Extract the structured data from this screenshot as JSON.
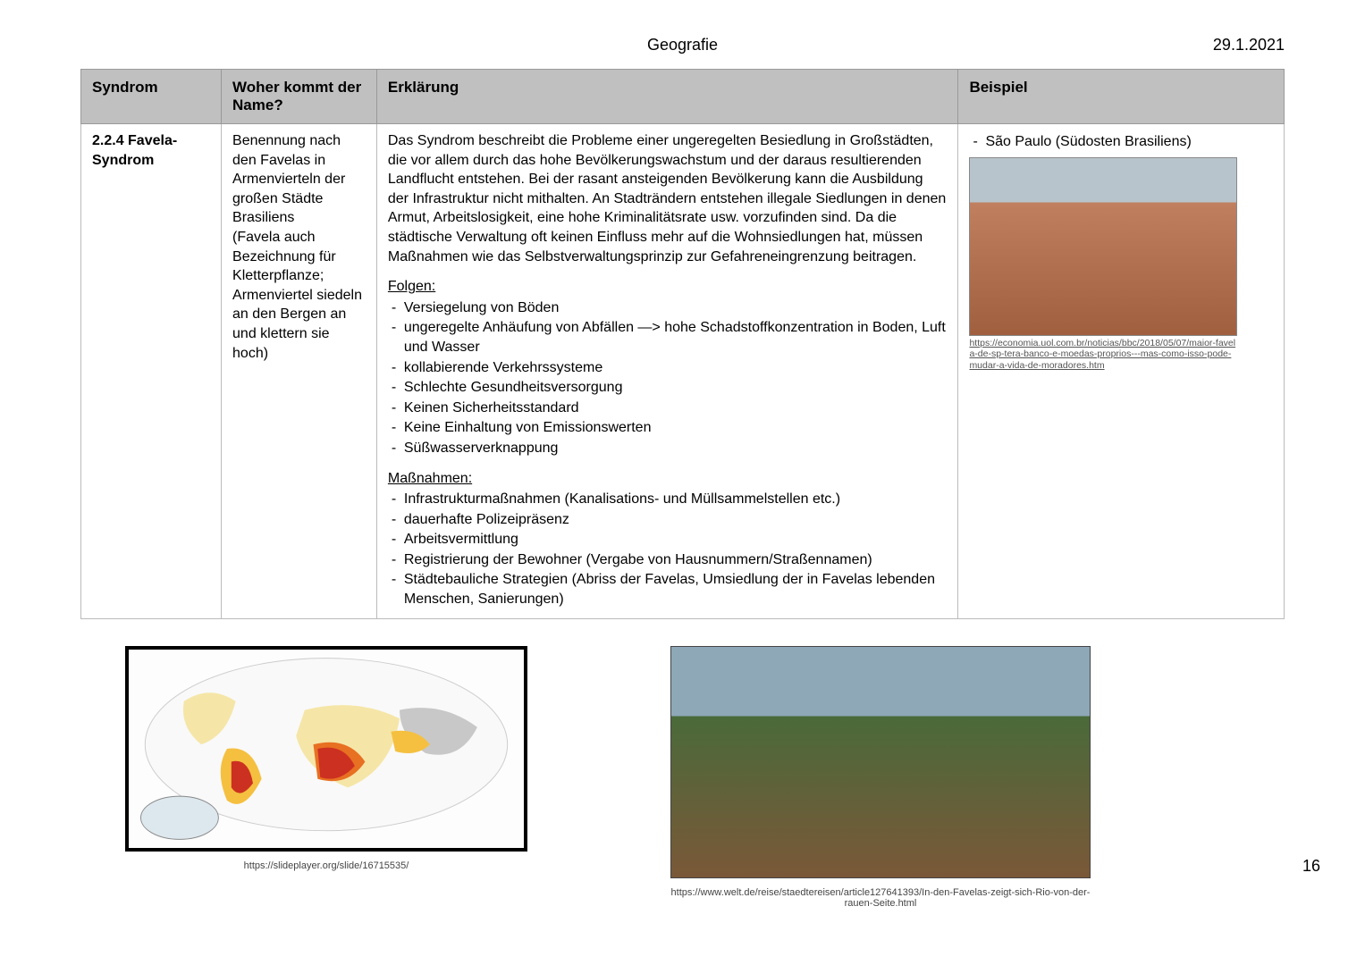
{
  "header": {
    "title": "Geografie",
    "date": "29.1.2021"
  },
  "table": {
    "headers": {
      "c1": "Syndrom",
      "c2": "Woher kommt der Name?",
      "c3": "Erklärung",
      "c4": "Beispiel"
    },
    "row": {
      "syndrom": "2.2.4 Favela-Syndrom",
      "name_origin": "Benennung nach den Favelas in Armenvierteln der großen Städte Brasiliens\n(Favela auch Bezeichnung für Kletterpflanze; Armenviertel siedeln an den Bergen an und klettern sie hoch)",
      "erklaerung_para": "Das Syndrom beschreibt die Probleme einer ungeregelten Besiedlung in Großstädten, die vor allem durch das hohe Bevölkerungswachstum und der daraus resultierenden Landflucht entstehen. Bei der rasant ansteigenden Bevölkerung kann die Ausbildung der Infrastruktur nicht mithalten. An Stadträndern entstehen illegale Siedlungen in denen Armut, Arbeitslosigkeit, eine hohe Kriminalitätsrate usw. vorzufinden sind. Da die städtische Verwaltung oft keinen Einfluss mehr auf die Wohnsiedlungen hat, müssen Maßnahmen wie das Selbstverwaltungsprinzip zur Gefahreneingrenzung beitragen.",
      "folgen_head": "Folgen:",
      "folgen": [
        "Versiegelung von Böden",
        "ungeregelte Anhäufung von Abfällen —> hohe Schadstoffkonzentration in Boden, Luft und Wasser",
        "kollabierende Verkehrssysteme",
        "Schlechte Gesundheitsversorgung",
        "Keinen Sicherheitsstandard",
        "Keine Einhaltung von Emissionswerten",
        "Süßwasserverknappung"
      ],
      "mass_head": "Maßnahmen:",
      "massnahmen": [
        "Infrastrukturmaßnahmen (Kanalisations- und Müllsammelstellen etc.)",
        "dauerhafte Polizeipräsenz",
        "Arbeitsvermittlung",
        "Registrierung der Bewohner (Vergabe von Hausnummern/Straßennamen)",
        "Städtebauliche Strategien (Abriss der Favelas, Umsiedlung der in Favelas lebenden Menschen, Sanierungen)"
      ],
      "beispiel_item": "São Paulo (Südosten Brasiliens)",
      "beispiel_img_alt": "Favela São Paulo",
      "beispiel_link": "https://economia.uol.com.br/noticias/bbc/2018/05/07/maior-favela-de-sp-tera-banco-e-moedas-proprios---mas-como-isso-pode-mudar-a-vida-de-moradores.htm"
    }
  },
  "lower": {
    "map_alt": "Weltkarte Syndromverbreitung",
    "map_colors": {
      "land": "#f5e6a8",
      "hot1": "#cc3020",
      "hot2": "#e87022",
      "hot3": "#f5c040",
      "none": "#c8c8c8",
      "ocean": "#ffffff"
    },
    "map_caption": "https://slideplayer.org/slide/16715535/",
    "photo2_alt": "Favela am Hang, Rio",
    "photo2_caption": "https://www.welt.de/reise/staedtereisen/article127641393/In-den-Favelas-zeigt-sich-Rio-von-der-rauen-Seite.html"
  },
  "page_number": "16"
}
